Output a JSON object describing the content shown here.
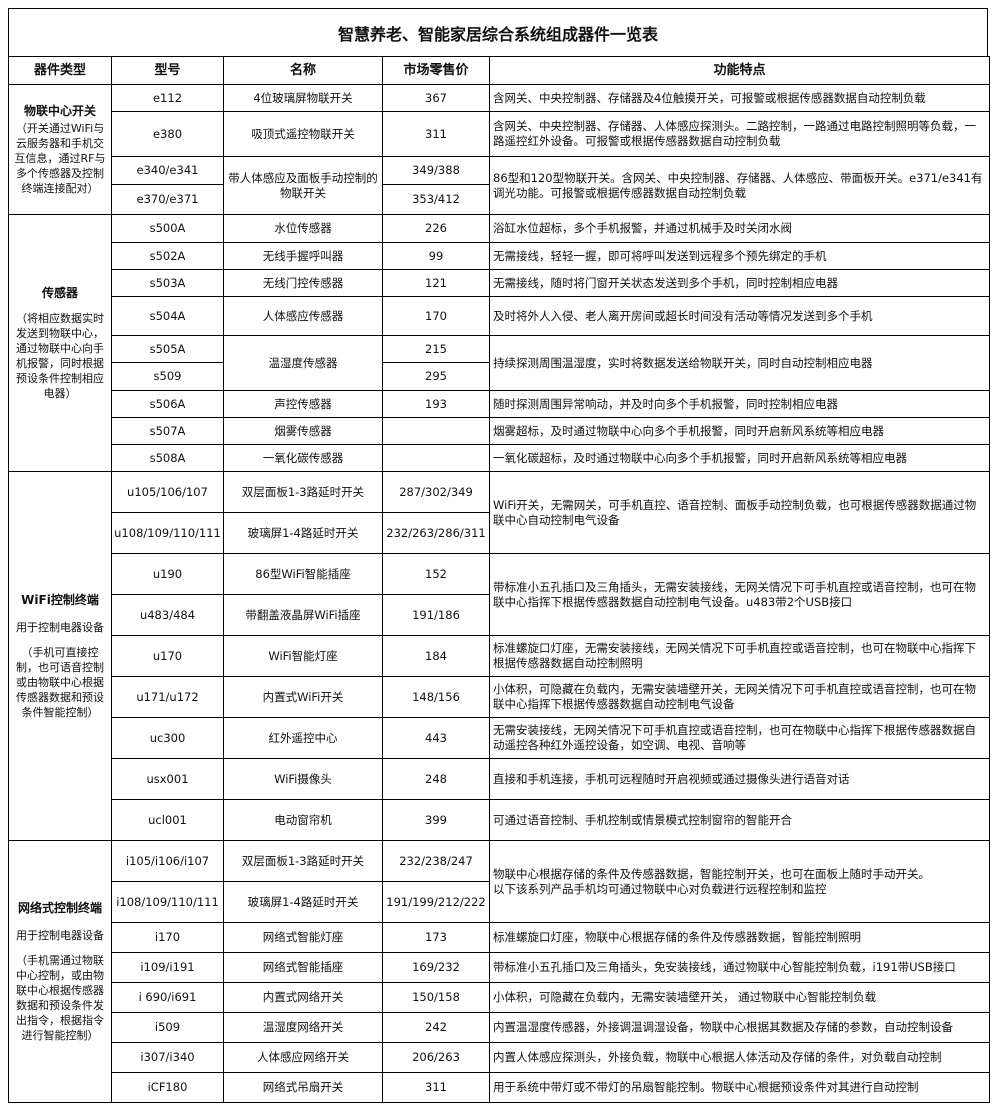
{
  "title": "智慧养老、智能家居综合系统组成器件一览表",
  "headers": [
    "器件类型",
    "型号",
    "名称",
    "市场零售价",
    "功能特点"
  ],
  "sections": [
    {
      "category": {
        "title": "物联中心开关",
        "subtitle": "",
        "note": "（开关通过WiFi与云服务器和手机交互信息，通过RF与多个传感器及控制终端连接配对）"
      },
      "rows": [
        {
          "model": "e112",
          "name": "4位玻璃屏物联开关",
          "price": "367",
          "feature": "含网关、中央控制器、存储器及4位触摸开关，可报警或根据传感器数据自动控制负载"
        },
        {
          "model": "e380",
          "name": "吸顶式遥控物联开关",
          "price": "311",
          "feature": "含网关、中央控制器、存储器、人体感应探测头。二路控制，一路通过电路控制照明等负载，一路遥控红外设备。可报警或根据传感器数据自动控制负载"
        },
        {
          "model": "e340/e341",
          "name": "带人体感应及面板手动控制的物联开关",
          "name_rowspan": 2,
          "price": "349/388",
          "feature": "86型和120型物联开关。含网关、中央控制器、存储器、人体感应、带面板开关。e371/e341有调光功能。可报警或根据传感器数据自动控制负载",
          "feature_rowspan": 2
        },
        {
          "model": "e370/e371",
          "price": "353/412"
        }
      ]
    },
    {
      "category": {
        "title": "传感器",
        "subtitle": "",
        "note": "（将相应数据实时发送到物联中心，通过物联中心向手机报警，同时根据预设条件控制相应电器）"
      },
      "rows": [
        {
          "model": "s500A",
          "name": "水位传感器",
          "price": "226",
          "feature": "浴缸水位超标，多个手机报警，并通过机械手及时关闭水阀"
        },
        {
          "model": "s502A",
          "name": "无线手握呼叫器",
          "price": "99",
          "feature": "无需接线，轻轻一握，即可将呼叫发送到远程多个预先绑定的手机"
        },
        {
          "model": "s503A",
          "name": "无线门控传感器",
          "price": "121",
          "feature": "无需接线，随时将门窗开关状态发送到多个手机，同时控制相应电器"
        },
        {
          "model": "s504A",
          "name": "人体感应传感器",
          "price": "170",
          "feature": "及时将外人入侵、老人离开房间或超长时间没有活动等情况发送到多个手机"
        },
        {
          "model": "s505A",
          "name": "温湿度传感器",
          "name_rowspan": 2,
          "price": "215",
          "feature": "持续探测周围温湿度，实时将数据发送给物联开关，同时自动控制相应电器",
          "feature_rowspan": 2
        },
        {
          "model": "s509",
          "price": "295"
        },
        {
          "model": "s506A",
          "name": "声控传感器",
          "price": "193",
          "feature": "随时探测周围异常响动，并及时向多个手机报警，同时控制相应电器"
        },
        {
          "model": "s507A",
          "name": "烟雾传感器",
          "price": "",
          "feature": "烟雾超标，及时通过物联中心向多个手机报警，同时开启新风系统等相应电器"
        },
        {
          "model": "s508A",
          "name": "一氧化碳传感器",
          "price": "",
          "feature": "一氧化碳超标，及时通过物联中心向多个手机报警，同时开启新风系统等相应电器"
        }
      ]
    },
    {
      "category": {
        "title": "WiFi控制终端",
        "subtitle": "用于控制电器设备",
        "note": "（手机可直接控制，也可语音控制或由物联中心根据传感器数据和预设条件智能控制）"
      },
      "rows": [
        {
          "model": "u105/106/107",
          "name": "双层面板1-3路延时开关",
          "price": "287/302/349",
          "feature": "WiFi开关，无需网关，可手机直控、语音控制、面板手动控制负载，也可根据传感器数据通过物联中心自动控制电气设备",
          "feature_rowspan": 2
        },
        {
          "model": "u108/109/110/111",
          "name": "玻璃屏1-4路延时开关",
          "price": "232/263/286/311"
        },
        {
          "model": "u190",
          "name": "86型WiFi智能插座",
          "price": "152",
          "feature": "带标准小五孔插口及三角插头，无需安装接线，无网关情况下可手机直控或语音控制，也可在物联中心指挥下根据传感器数据自动控制电气设备。u483带2个USB接口",
          "feature_rowspan": 2
        },
        {
          "model": "u483/484",
          "name": "带翻盖液晶屏WiFi插座",
          "price": "191/186"
        },
        {
          "model": "u170",
          "name": "WiFi智能灯座",
          "price": "184",
          "feature": "标准螺旋口灯座，无需安装接线，无网关情况下可手机直控或语音控制，也可在物联中心指挥下根据传感器数据自动控制照明"
        },
        {
          "model": "u171/u172",
          "name": "内置式WiFi开关",
          "price": "148/156",
          "feature": "小体积，可隐藏在负载内，无需安装墙壁开关，无网关情况下可手机直控或语音控制，也可在物联中心指挥下根据传感器数据自动控制电气设备"
        },
        {
          "model": "uc300",
          "name": "红外遥控中心",
          "price": "443",
          "feature": "无需安装接线，无网关情况下可手机直控或语音控制，也可在物联中心指挥下根据传感器数据自动遥控各种红外遥控设备，如空调、电视、音响等"
        },
        {
          "model": "usx001",
          "name": "WiFi摄像头",
          "price": "248",
          "feature": "直接和手机连接，手机可远程随时开启视频或通过摄像头进行语音对话"
        },
        {
          "model": "ucl001",
          "name": "电动窗帘机",
          "price": "399",
          "feature": "可通过语音控制、手机控制或情景模式控制窗帘的智能开合"
        }
      ]
    },
    {
      "category": {
        "title": "网络式控制终端",
        "subtitle": "用于控制电器设备",
        "note": "（手机需通过物联中心控制，或由物联中心根据传感器数据和预设条件发出指令，根据指令进行智能控制）"
      },
      "rows": [
        {
          "model": "i105/i106/i107",
          "name": "双层面板1-3路延时开关",
          "price": "232/238/247",
          "feature": "物联中心根据存储的条件及传感器数据，智能控制开关，也可在面板上随时手动开关。\n以下该系列产品手机均可通过物联中心对负载进行远程控制和监控",
          "feature_rowspan": 2
        },
        {
          "model": "i108/109/110/111",
          "name": "玻璃屏1-4路延时开关",
          "price": "191/199/212/222"
        },
        {
          "model": "i170",
          "name": "网络式智能灯座",
          "price": "173",
          "feature": "标准螺旋口灯座，物联中心根据存储的条件及传感器数据，智能控制照明"
        },
        {
          "model": "i109/i191",
          "name": "网络式智能插座",
          "price": "169/232",
          "feature": "带标准小五孔插口及三角插头，免安装接线，通过物联中心智能控制负载，i191带USB接口"
        },
        {
          "model": "i 690/i691",
          "name": "内置式网络开关",
          "price": "150/158",
          "feature": "小体积，可隐藏在负载内，无需安装墙壁开关， 通过物联中心智能控制负载"
        },
        {
          "model": "i509",
          "name": "温湿度网络开关",
          "price": "242",
          "feature": "内置温湿度传感器，外接调温调湿设备，物联中心根据其数据及存储的参数，自动控制设备"
        },
        {
          "model": "i307/i340",
          "name": "人体感应网络开关",
          "price": "206/263",
          "feature": "内置人体感应探测头，外接负载，物联中心根据人体活动及存储的条件，对负载自动控制"
        },
        {
          "model": "iCF180",
          "name": "网络式吊扇开关",
          "price": "311",
          "feature": "用于系统中带灯或不带灯的吊扇智能控制。物联中心根据预设条件对其进行自动控制"
        }
      ]
    }
  ]
}
